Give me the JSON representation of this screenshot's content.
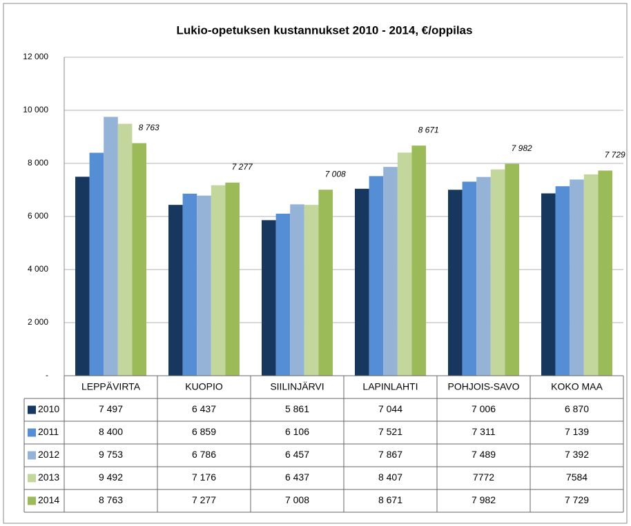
{
  "chart_data": {
    "type": "bar",
    "title": "Lukio-opetuksen kustannukset 2010 - 2014, €/oppilas",
    "categories": [
      "LEPPÄVIRTA",
      "KUOPIO",
      "SIILINJÄRVI",
      "LAPINLAHTI",
      "POHJOIS-SAVO",
      "KOKO MAA"
    ],
    "series": [
      {
        "name": "2010",
        "color": "#17375e",
        "values": [
          7497,
          6437,
          5861,
          7044,
          7006,
          6870
        ],
        "value_labels": [
          "7 497",
          "6 437",
          "5 861",
          "7 044",
          "7 006",
          "6 870"
        ]
      },
      {
        "name": "2011",
        "color": "#558ed5",
        "values": [
          8400,
          6859,
          6106,
          7521,
          7311,
          7139
        ],
        "value_labels": [
          "8 400",
          "6 859",
          "6 106",
          "7 521",
          "7 311",
          "7 139"
        ]
      },
      {
        "name": "2012",
        "color": "#95b3d7",
        "values": [
          9753,
          6786,
          6457,
          7867,
          7489,
          7392
        ],
        "value_labels": [
          "9 753",
          "6 786",
          "6 457",
          "7 867",
          "7 489",
          "7 392"
        ]
      },
      {
        "name": "2013",
        "color": "#c3d69b",
        "values": [
          9492,
          7176,
          6437,
          8407,
          7772,
          7584
        ],
        "value_labels": [
          "9 492",
          "7 176",
          "6 437",
          "8 407",
          "7772",
          "7584"
        ]
      },
      {
        "name": "2014",
        "color": "#9bbb59",
        "values": [
          8763,
          7277,
          7008,
          8671,
          7982,
          7729
        ],
        "value_labels": [
          "8 763",
          "7 277",
          "7 008",
          "8 671",
          "7 982",
          "7 729"
        ],
        "show_labels": true
      }
    ],
    "ylim": [
      0,
      12000
    ],
    "yticks": [
      {
        "value": 0,
        "label": "-"
      },
      {
        "value": 2000,
        "label": "2 000"
      },
      {
        "value": 4000,
        "label": "4 000"
      },
      {
        "value": 6000,
        "label": "6 000"
      },
      {
        "value": 8000,
        "label": "8 000"
      },
      {
        "value": 10000,
        "label": "10 000"
      },
      {
        "value": 12000,
        "label": "12 000"
      }
    ],
    "grid": true
  }
}
